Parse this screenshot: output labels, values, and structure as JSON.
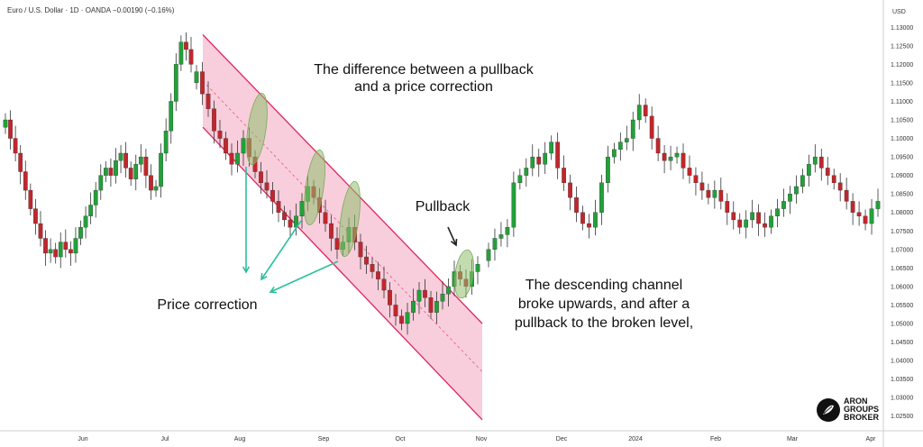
{
  "header": {
    "symbol_line": "Euro / U.S. Dollar · 1D · OANDA  −0.00190 (−0.16%)"
  },
  "axis": {
    "currency": "USD"
  },
  "logo": {
    "line1": "ARON",
    "line2": "GROUPS",
    "line3": "BROKER"
  },
  "colors": {
    "up": "#22a03a",
    "down": "#c0272d",
    "channel_fill": "#f7c6d6",
    "channel_line": "#e0245e",
    "arrow": "#2bbf9e",
    "ellipse": "#8fbf6e"
  },
  "annotations": {
    "title_line1": "The difference between a pullback",
    "title_line2": "and a price correction",
    "pullback": "Pullback",
    "price_correction": "Price correction",
    "breakout_line1": "The descending channel",
    "breakout_line2": "broke upwards, and after a",
    "breakout_line3": "pullback to the broken level,"
  },
  "chart_data": {
    "type": "candlestick",
    "title": "Euro / U.S. Dollar · 1D · OANDA",
    "y_axis": {
      "label": "USD",
      "range": [
        1.0225,
        1.1325
      ],
      "ticks": [
        "1.13000",
        "1.12500",
        "1.12000",
        "1.11500",
        "1.11000",
        "1.10500",
        "1.10000",
        "1.09500",
        "1.09000",
        "1.08500",
        "1.08000",
        "1.07500",
        "1.07000",
        "1.06500",
        "1.06000",
        "1.05500",
        "1.05000",
        "1.04500",
        "1.04000",
        "1.03500",
        "1.03000",
        "1.02500"
      ]
    },
    "x_axis": {
      "ticks": [
        "Jun",
        "Jul",
        "Aug",
        "Sep",
        "Oct",
        "Nov",
        "Dec",
        "2024",
        "Feb",
        "Mar",
        "Apr"
      ]
    },
    "series": [
      {
        "segment": "May–Jun",
        "closes": [
          1.105,
          1.1,
          1.096,
          1.091,
          1.086,
          1.081,
          1.077,
          1.073,
          1.069,
          1.07,
          1.068,
          1.072,
          1.07,
          1.069,
          1.073,
          1.076,
          1.079,
          1.082,
          1.086,
          1.09,
          1.092,
          1.09,
          1.094,
          1.096,
          1.092,
          1.089,
          1.093,
          1.095,
          1.09,
          1.086,
          1.087,
          1.096,
          1.102,
          1.11,
          1.12,
          1.126,
          1.124,
          1.12
        ]
      },
      {
        "segment": "Jul–Oct channel",
        "closes": [
          1.118,
          1.112,
          1.108,
          1.102,
          1.1,
          1.096,
          1.093,
          1.096,
          1.1,
          1.095,
          1.091,
          1.088,
          1.086,
          1.083,
          1.08,
          1.078,
          1.076,
          1.079,
          1.083,
          1.087,
          1.084,
          1.08,
          1.077,
          1.073,
          1.07,
          1.072,
          1.076,
          1.072,
          1.068,
          1.066,
          1.064,
          1.062,
          1.059,
          1.055,
          1.052,
          1.05,
          1.053,
          1.056,
          1.059,
          1.057,
          1.053,
          1.056,
          1.058,
          1.06,
          1.064,
          1.062,
          1.06,
          1.064,
          1.066
        ]
      },
      {
        "segment": "Nov–Apr",
        "closes": [
          1.07,
          1.073,
          1.074,
          1.076,
          1.088,
          1.09,
          1.092,
          1.095,
          1.093,
          1.096,
          1.099,
          1.092,
          1.088,
          1.084,
          1.08,
          1.077,
          1.076,
          1.08,
          1.088,
          1.095,
          1.097,
          1.099,
          1.1,
          1.105,
          1.109,
          1.106,
          1.1,
          1.096,
          1.094,
          1.095,
          1.096,
          1.092,
          1.09,
          1.088,
          1.086,
          1.084,
          1.086,
          1.083,
          1.08,
          1.078,
          1.076,
          1.078,
          1.08,
          1.077,
          1.076,
          1.079,
          1.081,
          1.083,
          1.085,
          1.087,
          1.09,
          1.093,
          1.095,
          1.092,
          1.09,
          1.088,
          1.086,
          1.083,
          1.08,
          1.079,
          1.077,
          1.081,
          1.083
        ]
      }
    ],
    "channel": {
      "upper": [
        [
          1.128,
          "start"
        ],
        [
          1.05,
          "end"
        ]
      ],
      "lower": [
        [
          1.103,
          "start"
        ],
        [
          1.024,
          "end"
        ]
      ]
    }
  }
}
